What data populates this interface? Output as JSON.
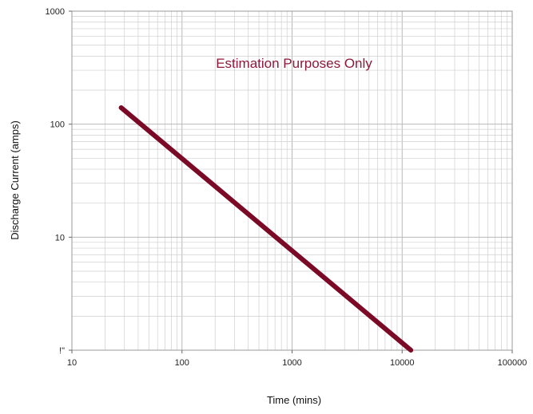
{
  "chart_data": {
    "type": "line",
    "xlabel": "Time (mins)",
    "ylabel": "Discharge Current (amps)",
    "x_scale": "log",
    "y_scale": "log",
    "xlim": [
      10,
      100000
    ],
    "ylim": [
      1,
      1000
    ],
    "x_tick_labels": [
      "10",
      "100",
      "1000",
      "10000",
      "100000"
    ],
    "y_tick_labels": [
      "!\"",
      "10",
      "100",
      "1000"
    ],
    "grid": "major and minor (log)",
    "annotation": "Estimation Purposes Only",
    "series": [
      {
        "x": [
          28,
          12000
        ],
        "y": [
          140,
          1
        ]
      }
    ],
    "colors": {
      "line": "#7a0a26",
      "annotation": "#8b1a3a",
      "grid": "#cfcfcf"
    }
  }
}
